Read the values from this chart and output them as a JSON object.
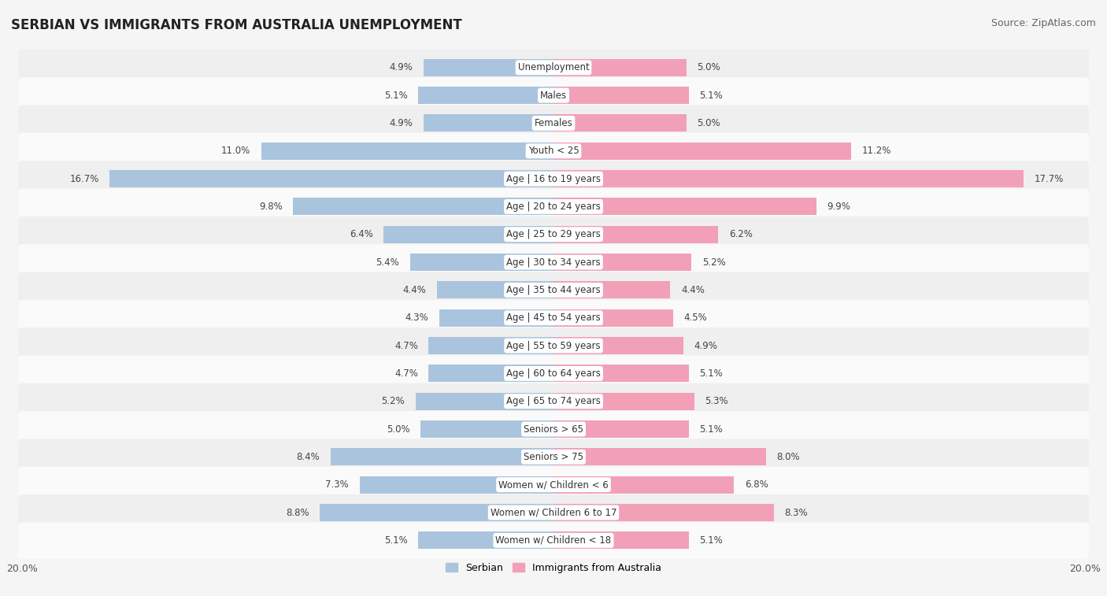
{
  "title": "SERBIAN VS IMMIGRANTS FROM AUSTRALIA UNEMPLOYMENT",
  "source": "Source: ZipAtlas.com",
  "categories": [
    "Unemployment",
    "Males",
    "Females",
    "Youth < 25",
    "Age | 16 to 19 years",
    "Age | 20 to 24 years",
    "Age | 25 to 29 years",
    "Age | 30 to 34 years",
    "Age | 35 to 44 years",
    "Age | 45 to 54 years",
    "Age | 55 to 59 years",
    "Age | 60 to 64 years",
    "Age | 65 to 74 years",
    "Seniors > 65",
    "Seniors > 75",
    "Women w/ Children < 6",
    "Women w/ Children 6 to 17",
    "Women w/ Children < 18"
  ],
  "serbian": [
    4.9,
    5.1,
    4.9,
    11.0,
    16.7,
    9.8,
    6.4,
    5.4,
    4.4,
    4.3,
    4.7,
    4.7,
    5.2,
    5.0,
    8.4,
    7.3,
    8.8,
    5.1
  ],
  "immigrants": [
    5.0,
    5.1,
    5.0,
    11.2,
    17.7,
    9.9,
    6.2,
    5.2,
    4.4,
    4.5,
    4.9,
    5.1,
    5.3,
    5.1,
    8.0,
    6.8,
    8.3,
    5.1
  ],
  "max_val": 20.0,
  "serbian_color": "#aac4de",
  "immigrant_color": "#f2a0b8",
  "row_even_color": "#efefef",
  "row_odd_color": "#fafafa",
  "bg_color": "#f5f5f5",
  "label_fontsize": 8.5,
  "value_fontsize": 8.5,
  "title_fontsize": 12,
  "source_fontsize": 9
}
